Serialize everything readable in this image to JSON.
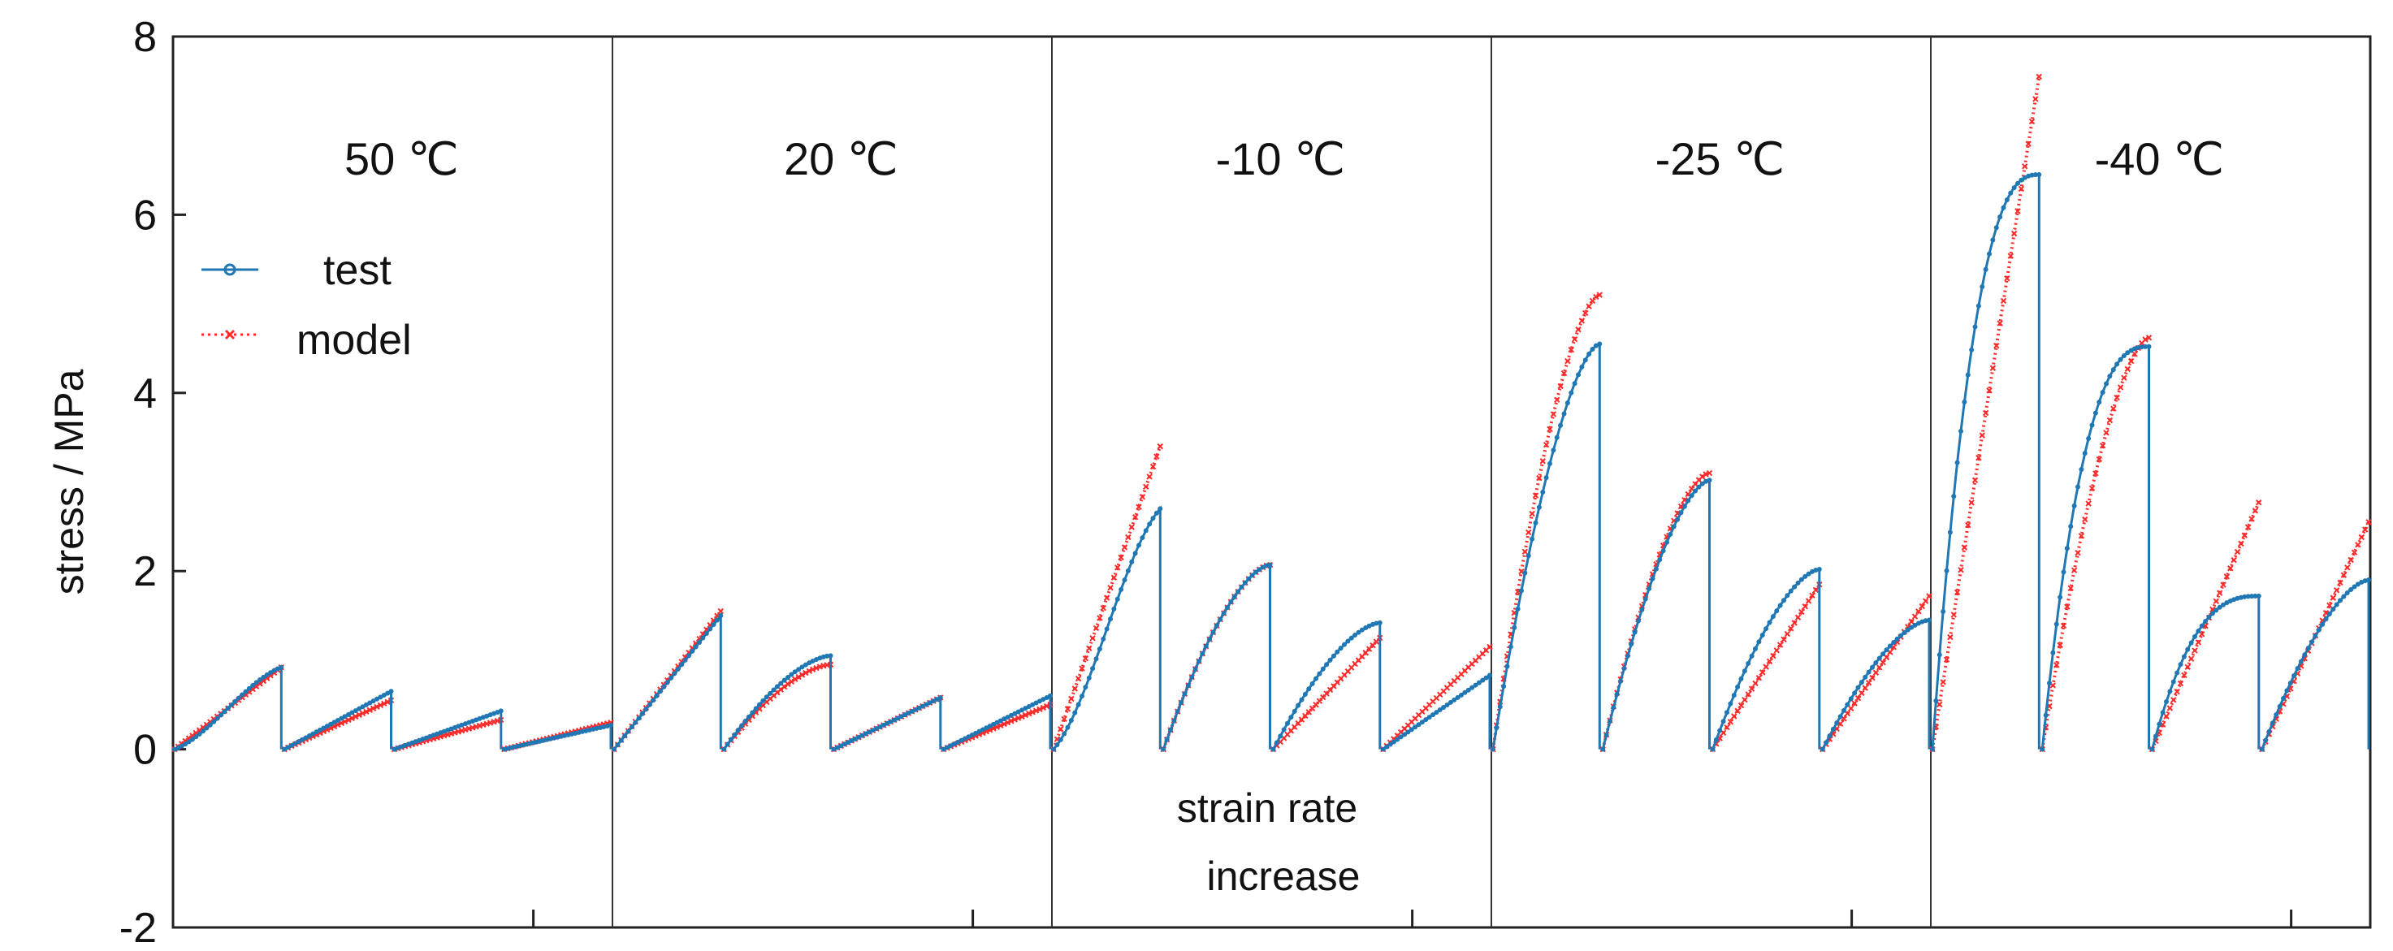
{
  "chart_data": {
    "type": "line",
    "ylabel": "stress / MPa",
    "ylim": [
      -2,
      8
    ],
    "yticks": [
      "-2",
      "0",
      "2",
      "4",
      "6",
      "8"
    ],
    "legend": {
      "placement": "upper-left",
      "entries": [
        {
          "label": "test",
          "color": "#1f77b4",
          "marker": "circle",
          "style": "solid"
        },
        {
          "label": "model",
          "color": "#ff2a2a",
          "marker": "x",
          "style": "dotted"
        }
      ]
    },
    "annotation": [
      "strain rate",
      "increase"
    ],
    "panels": [
      {
        "label": "50 ℃",
        "segments": [
          {
            "test": 0.92,
            "model": 0.92,
            "test_shape": "s",
            "model_shape": "lin"
          },
          {
            "test": 0.65,
            "model": 0.55,
            "test_shape": "lin",
            "model_shape": "lin"
          },
          {
            "test": 0.43,
            "model": 0.33,
            "test_shape": "lin",
            "model_shape": "lin"
          },
          {
            "test": 0.27,
            "model": 0.3,
            "test_shape": "lin",
            "model_shape": "lin"
          }
        ]
      },
      {
        "label": "20 ℃",
        "segments": [
          {
            "test": 1.5,
            "model": 1.55,
            "test_shape": "lin",
            "model_shape": "lin"
          },
          {
            "test": 1.05,
            "model": 0.95,
            "test_shape": "concave",
            "model_shape": "concave"
          },
          {
            "test": 0.58,
            "model": 0.58,
            "test_shape": "lin",
            "model_shape": "lin"
          },
          {
            "test": 0.6,
            "model": 0.5,
            "test_shape": "lin",
            "model_shape": "lin"
          }
        ]
      },
      {
        "label": "-10 ℃",
        "segments": [
          {
            "test": 2.7,
            "model": 3.4,
            "test_shape": "s",
            "model_shape": "lin"
          },
          {
            "test": 2.07,
            "model": 2.07,
            "test_shape": "concave",
            "model_shape": "concave"
          },
          {
            "test": 1.42,
            "model": 1.25,
            "test_shape": "concave",
            "model_shape": "lin"
          },
          {
            "test": 0.83,
            "model": 1.15,
            "test_shape": "lin",
            "model_shape": "lin"
          }
        ]
      },
      {
        "label": "-25 ℃",
        "segments": [
          {
            "test": 4.55,
            "model": 5.1,
            "test_shape": "concave",
            "model_shape": "concave"
          },
          {
            "test": 3.02,
            "model": 3.1,
            "test_shape": "concave",
            "model_shape": "concave"
          },
          {
            "test": 2.02,
            "model": 1.85,
            "test_shape": "concave",
            "model_shape": "lin"
          },
          {
            "test": 1.45,
            "model": 1.72,
            "test_shape": "concave",
            "model_shape": "lin"
          }
        ]
      },
      {
        "label": "-40 ℃",
        "segments": [
          {
            "test": 6.45,
            "model": 7.55,
            "test_shape": "strong",
            "model_shape": "lin"
          },
          {
            "test": 4.52,
            "model": 4.62,
            "test_shape": "strong",
            "model_shape": "concave"
          },
          {
            "test": 1.72,
            "model": 2.77,
            "test_shape": "strong",
            "model_shape": "lin"
          },
          {
            "test": 1.9,
            "model": 2.55,
            "test_shape": "concave",
            "model_shape": "lin"
          }
        ]
      }
    ]
  }
}
